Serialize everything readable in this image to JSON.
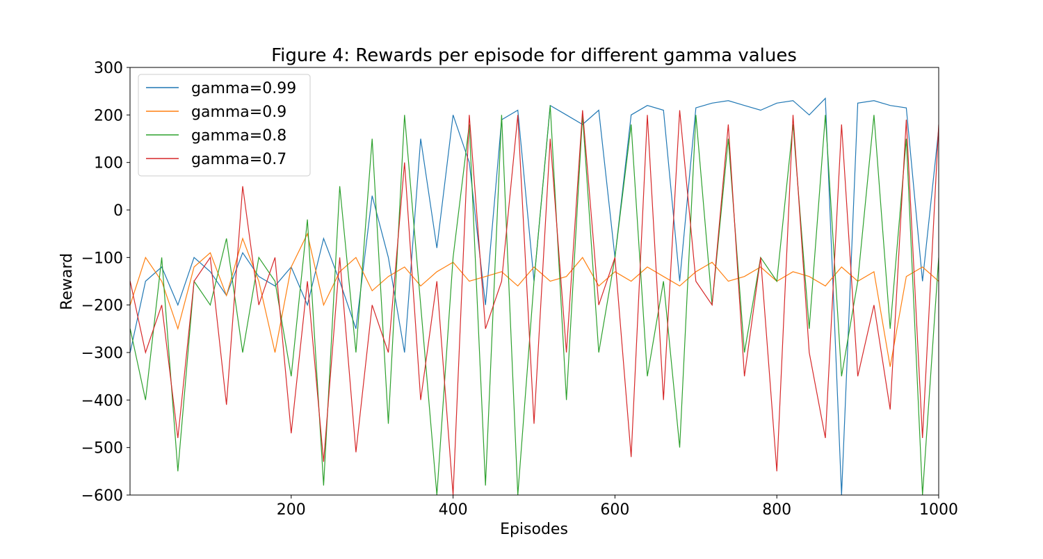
{
  "chart_data": {
    "type": "line",
    "title": "Figure 4: Rewards per episode for different gamma values",
    "xlabel": "Episodes",
    "ylabel": "Reward",
    "xlim": [
      1,
      1000
    ],
    "ylim": [
      -600,
      300
    ],
    "xticks": [
      200,
      400,
      600,
      800,
      1000
    ],
    "xtick_labels": [
      "200",
      "400",
      "600",
      "800",
      "1000"
    ],
    "yticks": [
      -600,
      -500,
      -400,
      -300,
      -200,
      -100,
      0,
      100,
      200,
      300
    ],
    "ytick_labels": [
      "−600",
      "−500",
      "−400",
      "−300",
      "−200",
      "−100",
      "0",
      "100",
      "200",
      "300"
    ],
    "grid": false,
    "legend_position": "top-left",
    "x": [
      1,
      20,
      40,
      60,
      80,
      100,
      120,
      140,
      160,
      180,
      200,
      220,
      240,
      260,
      280,
      300,
      320,
      340,
      360,
      380,
      400,
      420,
      440,
      460,
      480,
      500,
      520,
      540,
      560,
      580,
      600,
      620,
      640,
      660,
      680,
      700,
      720,
      740,
      760,
      780,
      800,
      820,
      840,
      860,
      880,
      900,
      920,
      940,
      960,
      980,
      1000
    ],
    "series": [
      {
        "name": "gamma=0.99",
        "color": "#1f77b4",
        "values": [
          -300,
          -150,
          -120,
          -200,
          -100,
          -130,
          -180,
          -90,
          -140,
          -160,
          -120,
          -200,
          -60,
          -150,
          -250,
          30,
          -100,
          -300,
          150,
          -80,
          200,
          100,
          -200,
          190,
          210,
          -150,
          220,
          200,
          180,
          210,
          -100,
          200,
          220,
          210,
          -150,
          215,
          225,
          230,
          220,
          210,
          225,
          230,
          200,
          235,
          -600,
          225,
          230,
          220,
          215,
          -150,
          170
        ]
      },
      {
        "name": "gamma=0.9",
        "color": "#ff7f0e",
        "values": [
          -200,
          -100,
          -150,
          -250,
          -120,
          -90,
          -180,
          -60,
          -150,
          -300,
          -120,
          -50,
          -200,
          -130,
          -100,
          -170,
          -140,
          -120,
          -160,
          -130,
          -110,
          -150,
          -140,
          -130,
          -160,
          -120,
          -150,
          -140,
          -100,
          -160,
          -130,
          -150,
          -120,
          -140,
          -160,
          -130,
          -110,
          -150,
          -140,
          -120,
          -150,
          -130,
          -140,
          -160,
          -120,
          -150,
          -130,
          -330,
          -140,
          -120,
          -150
        ]
      },
      {
        "name": "gamma=0.8",
        "color": "#2ca02c",
        "values": [
          -250,
          -400,
          -100,
          -550,
          -150,
          -200,
          -60,
          -300,
          -100,
          -150,
          -350,
          -20,
          -580,
          50,
          -300,
          150,
          -450,
          200,
          -200,
          -600,
          -100,
          180,
          -580,
          200,
          -600,
          -150,
          220,
          -400,
          200,
          -300,
          -100,
          180,
          -350,
          -150,
          -500,
          200,
          -200,
          150,
          -300,
          -100,
          -150,
          180,
          -250,
          200,
          -350,
          -150,
          200,
          -250,
          150,
          -600,
          -100
        ]
      },
      {
        "name": "gamma=0.7",
        "color": "#d62728",
        "values": [
          -150,
          -300,
          -200,
          -480,
          -150,
          -100,
          -410,
          50,
          -200,
          -100,
          -470,
          -150,
          -530,
          -100,
          -510,
          -200,
          -300,
          100,
          -400,
          -150,
          -600,
          200,
          -250,
          -150,
          200,
          -450,
          150,
          -300,
          210,
          -200,
          -100,
          -520,
          200,
          -400,
          210,
          -150,
          -200,
          180,
          -350,
          -100,
          -550,
          200,
          -300,
          -480,
          180,
          -350,
          -200,
          -420,
          190,
          -480,
          180
        ]
      }
    ]
  }
}
